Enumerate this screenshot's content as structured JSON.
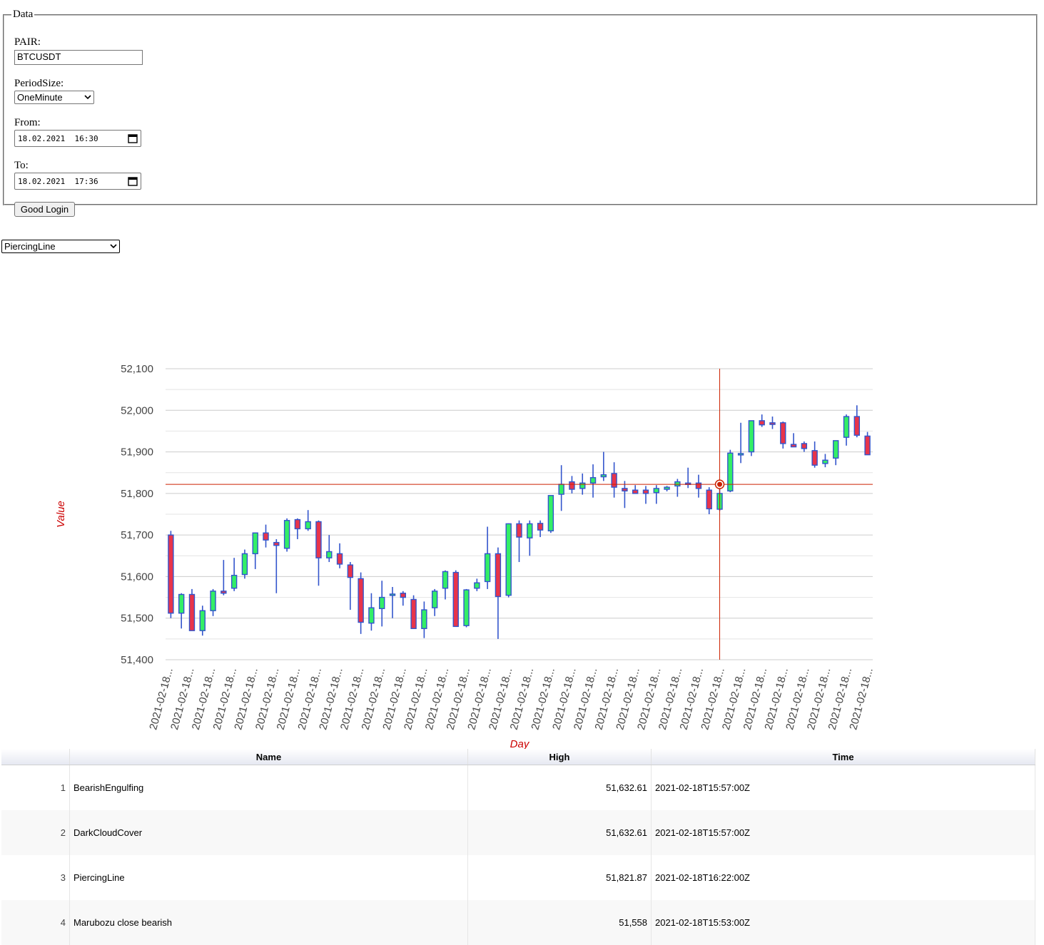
{
  "form": {
    "legend": "Data",
    "pair_label": "PAIR:",
    "pair_value": "BTCUSDT",
    "period_label": "PeriodSize:",
    "period_value": "OneMinute",
    "from_label": "From:",
    "from_value": "18.02.2021  16:30",
    "to_label": "To:",
    "to_value": "18.02.2021  17:36",
    "submit_label": "Good Login"
  },
  "pattern_select": {
    "value": "PiercingLine"
  },
  "icons": {
    "dropdown": "chevron-down-icon",
    "calendar": "calendar-icon"
  },
  "colors": {
    "bull": "#33ee66",
    "bear": "#e8344a",
    "wick": "#3355cc",
    "crosshair": "#cc2200",
    "axis_title": "#cc0000"
  },
  "chart_data": {
    "type": "candlestick",
    "xlabel": "Day",
    "ylabel": "Value",
    "ylim": [
      51400,
      52100
    ],
    "yticks": [
      "51,400",
      "51,500",
      "51,600",
      "51,700",
      "51,800",
      "51,900",
      "52,000",
      "52,100"
    ],
    "xtick_label": "2021-02-18...",
    "x_tick_count": 34,
    "crosshair": {
      "candle_index": 52,
      "value": 51821.87
    },
    "candles": [
      [
        51700,
        51710,
        51500,
        51512
      ],
      [
        51512,
        51560,
        51475,
        51557
      ],
      [
        51557,
        51570,
        51470,
        51470
      ],
      [
        51470,
        51530,
        51458,
        51518
      ],
      [
        51518,
        51570,
        51505,
        51565
      ],
      [
        51565,
        51640,
        51555,
        51560
      ],
      [
        51572,
        51645,
        51565,
        51603
      ],
      [
        51605,
        51665,
        51595,
        51655
      ],
      [
        51655,
        51705,
        51618,
        51705
      ],
      [
        51705,
        51725,
        51670,
        51688
      ],
      [
        51682,
        51690,
        51560,
        51675
      ],
      [
        51668,
        51740,
        51660,
        51735
      ],
      [
        51737,
        51740,
        51690,
        51715
      ],
      [
        51715,
        51760,
        51710,
        51732
      ],
      [
        51732,
        51735,
        51578,
        51645
      ],
      [
        51645,
        51700,
        51635,
        51660
      ],
      [
        51655,
        51680,
        51620,
        51630
      ],
      [
        51628,
        51635,
        51520,
        51598
      ],
      [
        51595,
        51610,
        51462,
        51490
      ],
      [
        51488,
        51560,
        51470,
        51525
      ],
      [
        51523,
        51590,
        51480,
        51550
      ],
      [
        51555,
        51575,
        51500,
        51558
      ],
      [
        51560,
        51565,
        51530,
        51550
      ],
      [
        51545,
        51555,
        51475,
        51475
      ],
      [
        51475,
        51540,
        51452,
        51520
      ],
      [
        51525,
        51570,
        51505,
        51565
      ],
      [
        51572,
        51615,
        51545,
        51612
      ],
      [
        51610,
        51615,
        51480,
        51480
      ],
      [
        51482,
        51570,
        51478,
        51568
      ],
      [
        51572,
        51595,
        51565,
        51585
      ],
      [
        51588,
        51720,
        51570,
        51655
      ],
      [
        51655,
        51670,
        51450,
        51552
      ],
      [
        51555,
        51728,
        51550,
        51727
      ],
      [
        51727,
        51735,
        51635,
        51695
      ],
      [
        51693,
        51735,
        51650,
        51727
      ],
      [
        51728,
        51735,
        51695,
        51712
      ],
      [
        51710,
        51795,
        51705,
        51795
      ],
      [
        51798,
        51868,
        51758,
        51822
      ],
      [
        51828,
        51842,
        51800,
        51810
      ],
      [
        51812,
        51848,
        51797,
        51825
      ],
      [
        51825,
        51870,
        51790,
        51838
      ],
      [
        51840,
        51900,
        51830,
        51845
      ],
      [
        51848,
        51875,
        51790,
        51815
      ],
      [
        51812,
        51830,
        51765,
        51806
      ],
      [
        51808,
        51820,
        51800,
        51800
      ],
      [
        51808,
        51818,
        51775,
        51800
      ],
      [
        51802,
        51820,
        51775,
        51812
      ],
      [
        51810,
        51818,
        51805,
        51815
      ],
      [
        51818,
        51835,
        51792,
        51828
      ],
      [
        51825,
        51862,
        51813,
        51822
      ],
      [
        51825,
        51845,
        51790,
        51812
      ],
      [
        51808,
        51815,
        51750,
        51763
      ],
      [
        51762,
        51820,
        51758,
        51800
      ],
      [
        51806,
        51905,
        51803,
        51897
      ],
      [
        51893,
        51970,
        51873,
        51896
      ],
      [
        51900,
        51975,
        51890,
        51975
      ],
      [
        51975,
        51990,
        51960,
        51965
      ],
      [
        51970,
        51985,
        51955,
        51966
      ],
      [
        51970,
        51973,
        51908,
        51920
      ],
      [
        51918,
        51945,
        51912,
        51912
      ],
      [
        51920,
        51925,
        51900,
        51908
      ],
      [
        51903,
        51925,
        51862,
        51868
      ],
      [
        51872,
        51895,
        51863,
        51880
      ],
      [
        51885,
        51925,
        51868,
        51927
      ],
      [
        51935,
        51990,
        51915,
        51985
      ],
      [
        51985,
        52012,
        51935,
        51940
      ],
      [
        51938,
        51948,
        51893,
        51893
      ]
    ]
  },
  "table": {
    "columns": [
      "",
      "Name",
      "High",
      "Time"
    ],
    "rows": [
      {
        "n": "1",
        "name": "BearishEngulfing",
        "high": "51,632.61",
        "time": "2021-02-18T15:57:00Z"
      },
      {
        "n": "2",
        "name": "DarkCloudCover",
        "high": "51,632.61",
        "time": "2021-02-18T15:57:00Z"
      },
      {
        "n": "3",
        "name": "PiercingLine",
        "high": "51,821.87",
        "time": "2021-02-18T16:22:00Z"
      },
      {
        "n": "4",
        "name": "Marubozu close bearish",
        "high": "51,558",
        "time": "2021-02-18T15:53:00Z"
      }
    ]
  }
}
